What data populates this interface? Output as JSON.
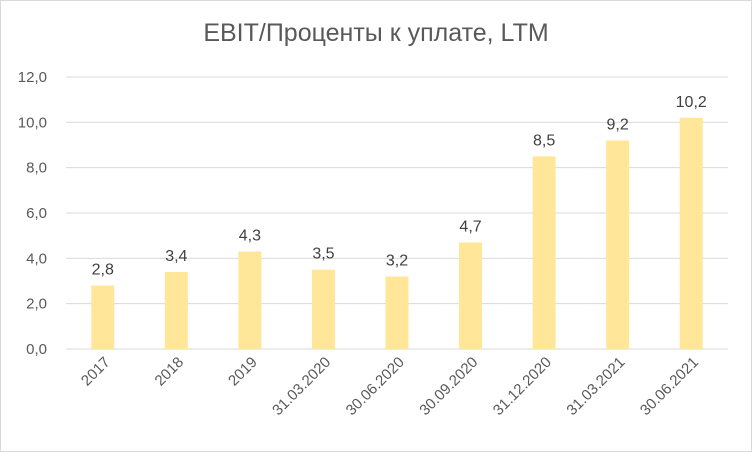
{
  "chart_data": {
    "type": "bar",
    "title": "EBIT/Проценты к уплате, LTM",
    "categories": [
      "2017",
      "2018",
      "2019",
      "31.03.2020",
      "30.06.2020",
      "30.09.2020",
      "31.12.2020",
      "31.03.2021",
      "30.06.2021"
    ],
    "values": [
      2.8,
      3.4,
      4.3,
      3.5,
      3.2,
      4.7,
      8.5,
      9.2,
      10.2
    ],
    "data_labels": [
      "2,8",
      "3,4",
      "4,3",
      "3,5",
      "3,2",
      "4,7",
      "8,5",
      "9,2",
      "10,2"
    ],
    "y_ticks": [
      0,
      2,
      4,
      6,
      8,
      10,
      12
    ],
    "y_tick_labels": [
      "0,0",
      "2,0",
      "4,0",
      "6,0",
      "8,0",
      "10,0",
      "12,0"
    ],
    "ylim": [
      0,
      12
    ],
    "xlabel": "",
    "ylabel": "",
    "grid": true,
    "legend": "none",
    "colors": {
      "bar": "#ffe699",
      "grid": "#d9d9d9",
      "text": "#595959"
    }
  }
}
